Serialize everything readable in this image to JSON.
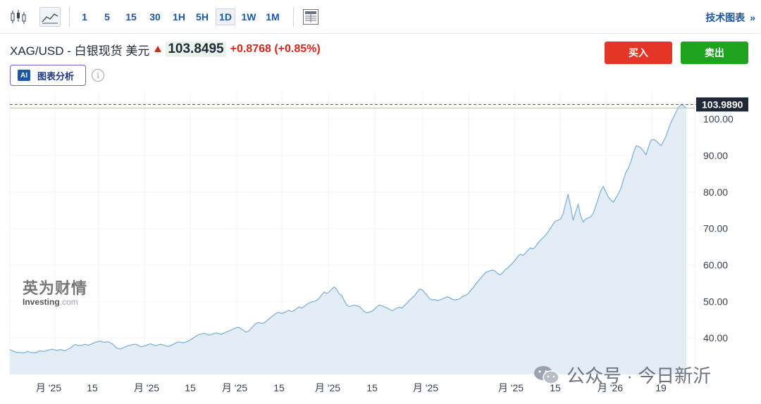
{
  "toolbar": {
    "timeframes": [
      "1",
      "5",
      "15",
      "30",
      "1H",
      "5H",
      "1D",
      "1W",
      "1M"
    ],
    "active_timeframe": "1D",
    "tech_chart_label": "技术图表",
    "tech_chart_arrow": "»"
  },
  "instrument": {
    "name": "XAG/USD - 白银现货 美元",
    "price": "103.8495",
    "change": "+0.8768 (+0.85%)",
    "direction_color": "#d9261c"
  },
  "actions": {
    "buy_label": "买入",
    "sell_label": "卖出",
    "buy_color": "#e53526",
    "sell_color": "#1ea31e"
  },
  "ai": {
    "badge": "AI",
    "label": "图表分析",
    "info_glyph": "i"
  },
  "watermark": {
    "cn": "英为财情",
    "en_main": "Investing",
    "en_suffix": ".com"
  },
  "wechat": {
    "text": "公众号 · 今日新沂"
  },
  "chart_data": {
    "type": "area",
    "title": "",
    "xlabel": "",
    "ylabel": "",
    "ylim": [
      30,
      106
    ],
    "y_ticks": [
      40,
      50,
      60,
      70,
      80,
      90,
      100
    ],
    "y_tick_labels": [
      "40.00",
      "50.00",
      "60.00",
      "70.00",
      "80.00",
      "90.00",
      "100.00"
    ],
    "x_tick_labels": [
      "月 '25",
      "15",
      "月 '25",
      "15",
      "月 '25",
      "15",
      "月 '25",
      "15",
      "月 '25",
      "月 '25",
      "15",
      "月 '26",
      "19"
    ],
    "current_value": 103.989,
    "current_value_label": "103.9890",
    "reference_value": 103.0,
    "line_color": "#7fb2dc",
    "fill_color": "#e4edf6",
    "values": [
      36.8,
      36.5,
      36.2,
      36.0,
      36.1,
      35.9,
      36.0,
      36.3,
      36.1,
      36.0,
      35.9,
      36.2,
      36.5,
      36.3,
      36.4,
      36.6,
      36.8,
      36.9,
      36.7,
      36.6,
      36.8,
      36.7,
      36.5,
      36.9,
      37.2,
      37.8,
      38.2,
      38.0,
      37.9,
      38.1,
      38.3,
      38.0,
      38.2,
      38.5,
      38.8,
      39.0,
      39.1,
      38.9,
      38.8,
      39.0,
      38.6,
      38.3,
      37.5,
      37.1,
      37.0,
      37.3,
      37.6,
      37.9,
      38.0,
      38.2,
      38.3,
      38.0,
      37.6,
      37.7,
      37.9,
      38.2,
      38.4,
      38.1,
      37.9,
      38.1,
      38.3,
      38.1,
      37.8,
      37.7,
      37.9,
      38.3,
      38.6,
      38.9,
      38.8,
      38.7,
      38.9,
      39.2,
      39.6,
      40.0,
      40.5,
      40.9,
      41.0,
      41.3,
      41.1,
      40.8,
      40.9,
      41.2,
      41.4,
      41.2,
      41.0,
      41.3,
      41.6,
      41.9,
      42.2,
      42.5,
      42.8,
      42.9,
      42.5,
      42.0,
      41.6,
      41.9,
      42.6,
      43.4,
      44.0,
      44.2,
      44.0,
      44.1,
      44.6,
      45.2,
      45.8,
      46.3,
      46.8,
      47.0,
      46.7,
      46.9,
      47.3,
      47.6,
      47.2,
      47.5,
      48.0,
      48.5,
      48.2,
      48.6,
      49.2,
      49.6,
      49.9,
      50.0,
      50.3,
      50.9,
      51.8,
      52.6,
      52.2,
      52.6,
      53.4,
      54.0,
      53.3,
      52.0,
      51.6,
      50.2,
      49.0,
      48.6,
      48.8,
      49.0,
      48.8,
      48.6,
      47.9,
      47.2,
      46.9,
      47.1,
      47.3,
      47.9,
      48.6,
      49.0,
      48.8,
      48.5,
      48.2,
      47.8,
      47.5,
      47.8,
      48.2,
      48.4,
      48.2,
      49.0,
      49.6,
      50.4,
      51.0,
      51.6,
      52.6,
      53.4,
      53.2,
      52.4,
      51.6,
      50.7,
      50.4,
      50.5,
      50.3,
      50.4,
      50.7,
      51.0,
      51.3,
      51.0,
      50.6,
      50.4,
      50.5,
      50.8,
      51.4,
      51.6,
      52.0,
      52.8,
      53.6,
      54.6,
      55.4,
      56.2,
      57.0,
      57.8,
      58.2,
      58.4,
      58.6,
      58.3,
      57.6,
      57.3,
      57.9,
      58.7,
      59.2,
      59.9,
      60.6,
      61.4,
      62.3,
      63.0,
      62.6,
      63.2,
      64.0,
      64.7,
      64.4,
      65.0,
      66.0,
      66.8,
      67.4,
      68.2,
      69.0,
      70.1,
      71.2,
      72.0,
      72.3,
      72.6,
      74.0,
      76.8,
      79.4,
      76.0,
      72.2,
      74.6,
      76.6,
      73.4,
      71.8,
      72.6,
      72.9,
      73.2,
      74.2,
      76.2,
      78.2,
      80.4,
      81.5,
      80.0,
      78.6,
      77.8,
      77.2,
      78.4,
      79.6,
      81.0,
      83.4,
      85.4,
      86.6,
      88.4,
      90.8,
      92.6,
      92.5,
      92.0,
      91.2,
      90.2,
      92.4,
      94.2,
      94.4,
      94.0,
      93.3,
      92.7,
      94.0,
      95.4,
      97.4,
      99.2,
      100.6,
      102.0,
      103.3,
      104.0,
      103.5,
      103.0
    ]
  }
}
